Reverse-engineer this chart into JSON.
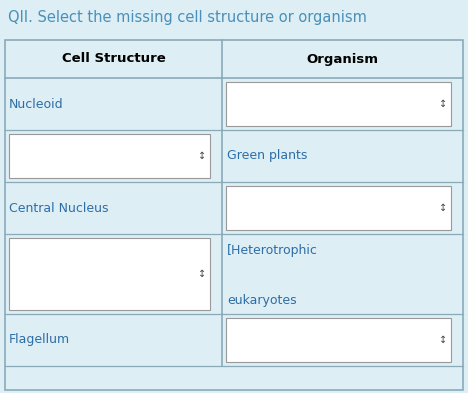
{
  "title": "QII. Select the missing cell structure or organism",
  "title_color": "#4a90b8",
  "background_color": "#ddeef5",
  "table_bg": "#ddeef5",
  "header_bg": "#ddeef5",
  "border_color": "#8aaab8",
  "header_text_color": "#000000",
  "col1_header": "Cell Structure",
  "col2_header": "Organism",
  "rows": [
    {
      "col1_text": "Nucleoid",
      "col1_is_label": true,
      "col2_text": "",
      "col2_is_label": false
    },
    {
      "col1_text": "",
      "col1_is_label": false,
      "col2_text": "Green plants",
      "col2_is_label": true
    },
    {
      "col1_text": "Central Nucleus",
      "col1_is_label": true,
      "col2_text": "",
      "col2_is_label": false
    },
    {
      "col1_text": "",
      "col1_is_label": false,
      "col2_text": "[Heterotrophic\n\neukaryotes",
      "col2_is_label": true
    },
    {
      "col1_text": "Flagellum",
      "col1_is_label": true,
      "col2_text": "",
      "col2_is_label": false
    }
  ],
  "cell_text_color": "#2E6EA6",
  "dropdown_symbol": "↕",
  "fig_width": 4.68,
  "fig_height": 3.93,
  "dpi": 100
}
